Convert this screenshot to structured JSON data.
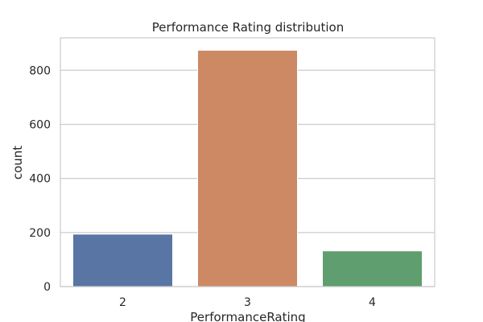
{
  "chart_data": {
    "type": "bar",
    "title": "Performance Rating distribution",
    "xlabel": "PerformanceRating",
    "ylabel": "count",
    "categories": [
      "2",
      "3",
      "4"
    ],
    "values": [
      194,
      874,
      132
    ],
    "ylim": [
      0,
      920
    ],
    "yticks": [
      0,
      200,
      400,
      600,
      800
    ],
    "grid": true,
    "legend": "none",
    "colors": [
      "#5875a4",
      "#cc8963",
      "#5f9e6e"
    ]
  }
}
